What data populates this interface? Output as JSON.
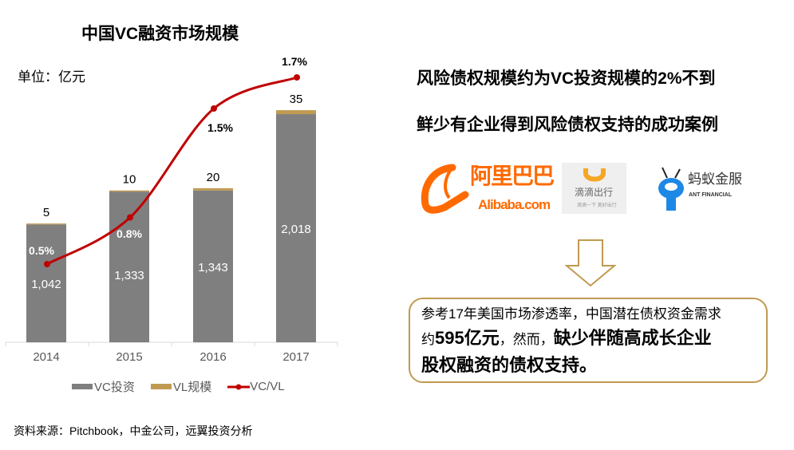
{
  "chart_data": {
    "type": "bar+line",
    "title": "中国VC融资市场规模",
    "unit_label": "单位：亿元",
    "categories": [
      "2014",
      "2015",
      "2016",
      "2017"
    ],
    "stacked": true,
    "series": [
      {
        "name": "VC投资",
        "type": "bar",
        "values": [
          1042,
          1333,
          1343,
          2018
        ],
        "labels": [
          "1,042",
          "1,333",
          "1,343",
          "2,018"
        ],
        "color": "#7F7F7F"
      },
      {
        "name": "VL规模",
        "type": "bar",
        "values": [
          5,
          10,
          20,
          35
        ],
        "labels": [
          "5",
          "10",
          "20",
          "35"
        ],
        "color": "#C09A50"
      },
      {
        "name": "VC/VL",
        "type": "line",
        "axis": "secondary",
        "values": [
          0.5,
          0.8,
          1.5,
          1.7
        ],
        "labels": [
          "0.5%",
          "0.8%",
          "1.5%",
          "1.7%"
        ],
        "color": "#C00000"
      }
    ],
    "grid": false,
    "legend_position": "bottom"
  },
  "source": "资料来源：Pitchbook，中金公司，远翼投资分析",
  "right": {
    "headline1": "风险债权规模约为VC投资规模的2%不到",
    "headline2": "鲜少有企业得到风险债权支持的成功案例",
    "logos": {
      "alibaba_cn": "阿里巴巴",
      "alibaba_en": "Alibaba.com",
      "didi_cn": "滴滴出行",
      "didi_sub": "滴滴一下 美好出行",
      "ant_cn": "蚂蚁金服",
      "ant_en": "ANT FINANCIAL"
    },
    "callout": {
      "line1": "参考17年美国市场渗透率，中国潜在债权资金需求",
      "line2_prefix": "约",
      "line2_amount": "595亿元",
      "line2_mid": "，然而，",
      "line2_bold": "缺少伴随高成长企业",
      "line3": "股权融资的债权支持。"
    }
  },
  "colors": {
    "vc": "#7F7F7F",
    "vl": "#C09A50",
    "line": "#C00000",
    "border": "#C09A50",
    "alibaba": "#FF6A00",
    "didi": "#F5A623",
    "ant": "#1E88E5"
  }
}
